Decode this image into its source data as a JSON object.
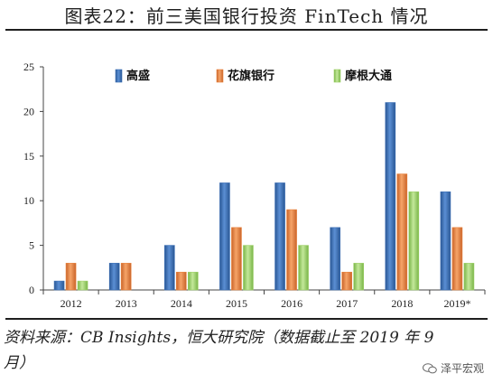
{
  "title": "图表22：前三美国银行投资 FinTech 情况",
  "source_note": "资料来源：CB Insights，恒大研究院（数据截止至 2019 年 9 月）",
  "watermark": "泽平宏观",
  "chart_data": {
    "type": "bar",
    "categories": [
      "2012",
      "2013",
      "2014",
      "2015",
      "2016",
      "2017",
      "2018",
      "2019*"
    ],
    "series": [
      {
        "name": "高盛",
        "color": "#3a6eb5",
        "values": [
          1,
          3,
          5,
          12,
          12,
          7,
          21,
          11
        ]
      },
      {
        "name": "花旗银行",
        "color": "#e8803a",
        "values": [
          3,
          3,
          2,
          7,
          9,
          2,
          13,
          7
        ]
      },
      {
        "name": "摩根大通",
        "color": "#9fd068",
        "values": [
          1,
          0,
          2,
          5,
          5,
          3,
          11,
          3
        ]
      }
    ],
    "ylim": [
      0,
      25
    ],
    "yticks": [
      0,
      5,
      10,
      15,
      20,
      25
    ],
    "grid": false,
    "legend": "top-center"
  }
}
